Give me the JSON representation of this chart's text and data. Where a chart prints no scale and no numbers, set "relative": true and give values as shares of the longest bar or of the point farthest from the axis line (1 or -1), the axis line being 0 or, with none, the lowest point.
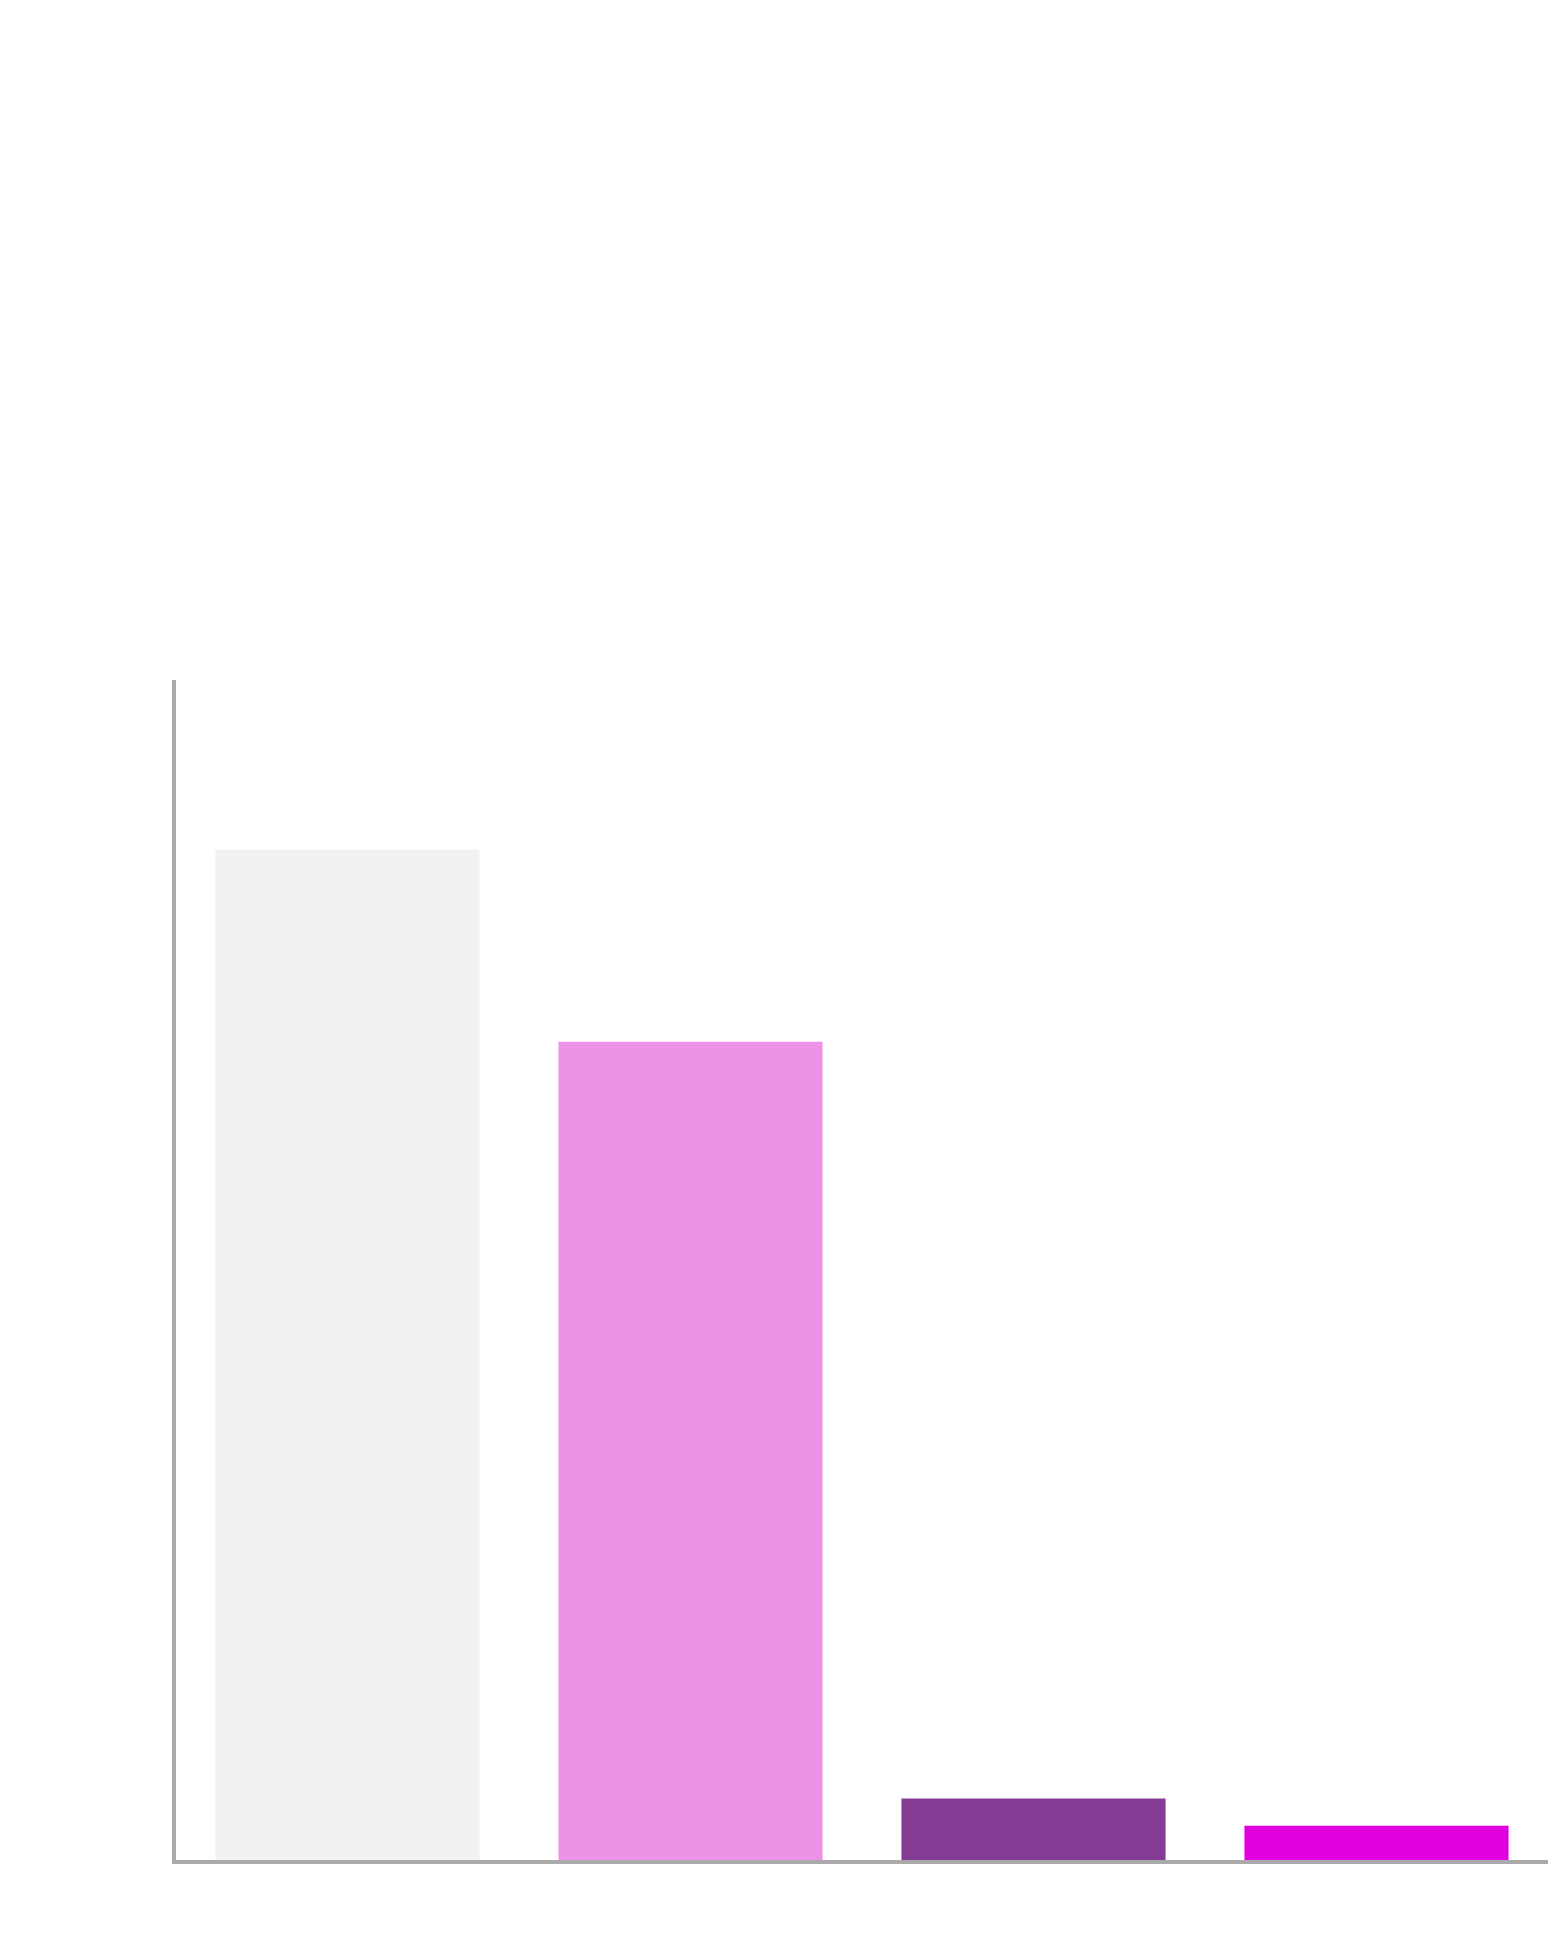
{
  "chart_data": {
    "type": "bar",
    "relative": true,
    "categories": [
      null,
      null,
      null,
      null
    ],
    "values": [
      1,
      0.81,
      0.061,
      0.034
    ],
    "colors": [
      "#f1f1f1",
      "#ee92e8",
      "#843b93",
      "#e100e0"
    ]
  }
}
